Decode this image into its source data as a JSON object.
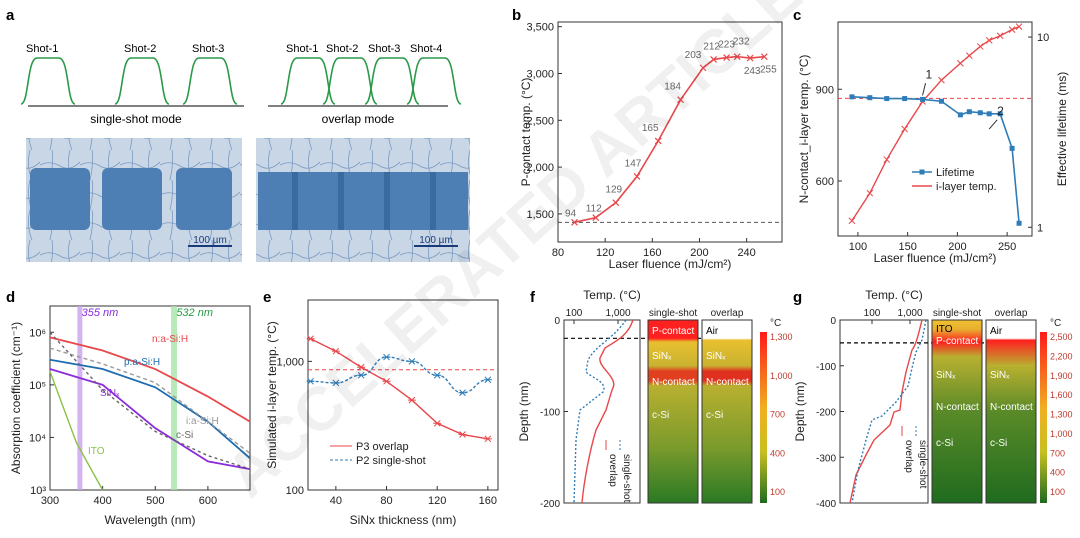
{
  "panels": {
    "a": {
      "letter": "a",
      "single_shots": [
        "Shot-1",
        "Shot-2",
        "Shot-3"
      ],
      "overlap_shots": [
        "Shot-1",
        "Shot-2",
        "Shot-3",
        "Shot-4"
      ],
      "single_label": "single-shot mode",
      "overlap_label": "overlap mode",
      "scalebar_left": "100 µm",
      "scalebar_right": "100 µm"
    },
    "b": {
      "letter": "b"
    },
    "c": {
      "letter": "c"
    },
    "d": {
      "letter": "d"
    },
    "e": {
      "letter": "e"
    },
    "f": {
      "letter": "f"
    },
    "g": {
      "letter": "g"
    }
  },
  "watermark": "ACCELERATED ARTICLE PREVIEW",
  "colors": {
    "red": "#e8474b",
    "blue": "#2e7cb8",
    "green": "#2a9a48",
    "purple": "#8b2bd9",
    "micro": "#4d7fb5"
  },
  "chart_data": [
    {
      "id": "b",
      "type": "line",
      "xlabel": "Laser fluence (mJ/cm²)",
      "ylabel": "P-contact temp. (°C)",
      "xlim": [
        80,
        270
      ],
      "ylim": [
        1200,
        3550
      ],
      "xticks": [
        "80",
        "120",
        "160",
        "200",
        "240"
      ],
      "yticks": [
        "1,500",
        "2,000",
        "2,500",
        "3,000",
        "3,500"
      ],
      "x": [
        94,
        112,
        129,
        147,
        165,
        184,
        203,
        212,
        223,
        232,
        243,
        255
      ],
      "values": [
        1410,
        1460,
        1620,
        1900,
        2280,
        2720,
        3060,
        3150,
        3170,
        3180,
        3165,
        3180
      ],
      "point_labels": [
        "94",
        "112",
        "129",
        "147",
        "165",
        "184",
        "203",
        "212",
        "223",
        "232",
        "243",
        "255"
      ],
      "reference_line": 1410
    },
    {
      "id": "c",
      "type": "line",
      "xlabel": "Laser fluence (mJ/cm²)",
      "ylabel": "N-contact_i-layer temp. (°C)",
      "ylabel_right": "Effective lifetime (ms)",
      "xlim": [
        80,
        275
      ],
      "xticks": [
        "100",
        "150",
        "200",
        "250"
      ],
      "yticks": [
        "600",
        "900"
      ],
      "yticks_right": [
        "1",
        "10"
      ],
      "legend": [
        "Lifetime",
        "i-layer temp."
      ],
      "annotations": [
        "1",
        "2"
      ],
      "series": [
        {
          "name": "Lifetime",
          "x": [
            94,
            112,
            129,
            147,
            165,
            184,
            203,
            212,
            223,
            232,
            243,
            255,
            262
          ],
          "values": [
            4.85,
            4.8,
            4.75,
            4.75,
            4.7,
            4.6,
            3.9,
            4.05,
            4.0,
            3.95,
            3.95,
            2.6,
            1.05
          ]
        },
        {
          "name": "i-layer temp.",
          "x": [
            94,
            112,
            129,
            147,
            165,
            184,
            203,
            212,
            223,
            232,
            243,
            255,
            262
          ],
          "values": [
            470,
            560,
            670,
            770,
            860,
            930,
            985,
            1010,
            1040,
            1060,
            1075,
            1095,
            1105
          ]
        }
      ]
    },
    {
      "id": "d",
      "type": "line",
      "xlabel": "Wavelength (nm)",
      "ylabel": "Absorption coefficient (cm⁻¹)",
      "xlim": [
        300,
        680
      ],
      "xticks": [
        "300",
        "400",
        "500",
        "600"
      ],
      "yticks": [
        "10³",
        "10⁴",
        "10⁵",
        "10⁶"
      ],
      "markers": [
        "355 nm",
        "532 nm"
      ],
      "series": [
        {
          "name": "n:a-Si:H",
          "x": [
            300,
            400,
            500,
            600,
            680
          ],
          "values": [
            800000,
            450000,
            200000,
            60000,
            20000
          ]
        },
        {
          "name": "p:a-Si:H",
          "x": [
            300,
            400,
            500,
            600,
            680
          ],
          "values": [
            300000,
            200000,
            90000,
            20000,
            4000
          ]
        },
        {
          "name": "SiNₓ",
          "x": [
            300,
            400,
            500,
            600,
            680
          ],
          "values": [
            200000,
            100000,
            15000,
            3500,
            2500
          ]
        },
        {
          "name": "i:a-Si:H",
          "x": [
            300,
            400,
            500,
            600,
            680
          ],
          "values": [
            500000,
            250000,
            110000,
            20000,
            5000
          ]
        },
        {
          "name": "c-Si",
          "x": [
            300,
            400,
            500,
            600,
            680
          ],
          "values": [
            1000000,
            80000,
            13000,
            4500,
            2500
          ]
        },
        {
          "name": "ITO",
          "x": [
            300,
            350,
            400
          ],
          "values": [
            180000,
            8000,
            1000
          ]
        }
      ]
    },
    {
      "id": "e",
      "type": "line",
      "xlabel": "SiNx thickness (nm)",
      "ylabel": "Simulated i-layer temp. (°C)",
      "xlim": [
        18,
        168
      ],
      "xticks": [
        "40",
        "80",
        "120",
        "160"
      ],
      "yticks": [
        "100",
        "1,000"
      ],
      "reference_line": 860,
      "legend": [
        "P3 overlap",
        "P2 single-shot"
      ],
      "series": [
        {
          "name": "P3 overlap",
          "x": [
            20,
            40,
            60,
            80,
            100,
            120,
            140,
            160
          ],
          "values": [
            1500,
            1200,
            900,
            700,
            500,
            330,
            270,
            250
          ]
        },
        {
          "name": "P2 single-shot",
          "x": [
            20,
            40,
            60,
            80,
            100,
            120,
            140,
            160
          ],
          "values": [
            700,
            680,
            780,
            1080,
            1000,
            780,
            570,
            720
          ]
        }
      ]
    },
    {
      "id": "f",
      "type": "line",
      "title": "Temp. (°C)",
      "ylabel": "Depth (nm)",
      "xticks": [
        "100",
        "1,000"
      ],
      "yticks": [
        "0",
        "-100",
        "-200"
      ],
      "series_labels": [
        "single-shot",
        "overlap"
      ],
      "bar_headers": [
        "single-shot",
        "overlap"
      ],
      "layers_single": [
        "P-contact",
        "SiNₓ",
        "N-contact",
        "c-Si"
      ],
      "layers_overlap": [
        "Air",
        "SiNₓ",
        "N-contact",
        "c-Si"
      ],
      "colorbar_title": "°C",
      "colorbar_ticks": [
        "1,300",
        "1,000",
        "700",
        "400",
        "100"
      ]
    },
    {
      "id": "g",
      "type": "line",
      "title": "Temp. (°C)",
      "ylabel": "Depth (nm)",
      "xticks": [
        "100",
        "1,000"
      ],
      "yticks": [
        "0",
        "-100",
        "-200",
        "-300",
        "-400"
      ],
      "series_labels": [
        "single-shot",
        "overlap"
      ],
      "bar_headers": [
        "single-shot",
        "overlap"
      ],
      "layers_single": [
        "ITO",
        "P-contact",
        "SiNₓ",
        "N-contact",
        "c-Si"
      ],
      "layers_overlap": [
        "Air",
        "SiNₓ",
        "N-contact",
        "c-Si"
      ],
      "colorbar_title": "°C",
      "colorbar_ticks": [
        "2,500",
        "2,200",
        "1,900",
        "1,600",
        "1,300",
        "1,000",
        "700",
        "400",
        "100"
      ]
    }
  ]
}
